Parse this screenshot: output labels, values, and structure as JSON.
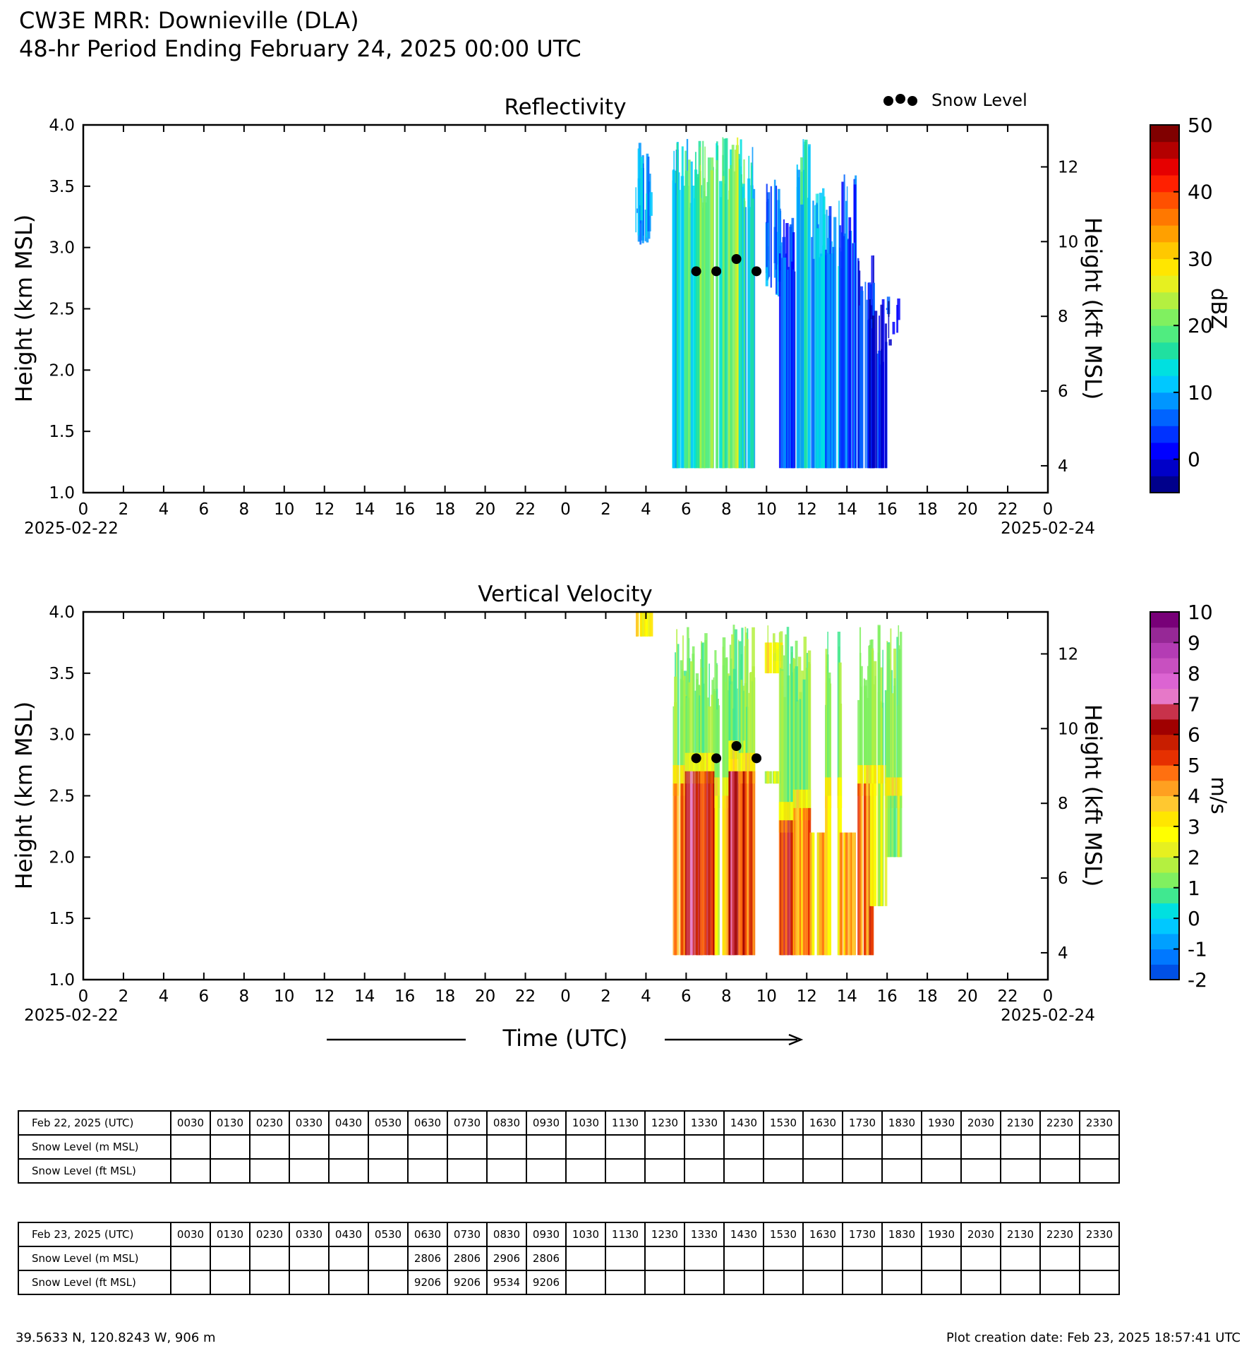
{
  "header": {
    "title_line1": "CW3E MRR: Downieville (DLA)",
    "title_line2": "48-hr Period Ending February 24, 2025 00:00 UTC"
  },
  "legend": {
    "snow_level_label": "Snow Level"
  },
  "colors": {
    "dbz": [
      "#00008b",
      "#0000c8",
      "#0000ff",
      "#0032ff",
      "#0064ff",
      "#0096ff",
      "#00c8ff",
      "#00e0e0",
      "#20e0a0",
      "#50ec80",
      "#80f060",
      "#b4f040",
      "#e6f020",
      "#ffe600",
      "#ffc800",
      "#ffa000",
      "#ff7800",
      "#ff5000",
      "#ff2000",
      "#e60000",
      "#b40000",
      "#800000"
    ],
    "vel": [
      "#0050e6",
      "#0078ff",
      "#00a0ff",
      "#00c8ff",
      "#00e0e0",
      "#40e890",
      "#80f060",
      "#b4f040",
      "#e6f020",
      "#ffff00",
      "#ffe600",
      "#ffc830",
      "#ffa020",
      "#ff7010",
      "#e63000",
      "#c81e00",
      "#a00000",
      "#c8324b",
      "#e678c8",
      "#dc64d2",
      "#c850c0",
      "#b43cb4",
      "#962896",
      "#780078"
    ]
  },
  "chart_data": [
    {
      "type": "heatmap",
      "title": "Reflectivity",
      "ylabel": "Height (km MSL)",
      "ylabel_right": "Height (kft MSL)",
      "ylim": [
        1.0,
        4.0
      ],
      "yticks": [
        "1.0",
        "1.5",
        "2.0",
        "2.5",
        "3.0",
        "3.5",
        "4.0"
      ],
      "yticks_right": [
        "4",
        "6",
        "8",
        "10",
        "12"
      ],
      "xlim": [
        0,
        48
      ],
      "xticks": [
        "0",
        "2",
        "4",
        "6",
        "8",
        "10",
        "12",
        "14",
        "16",
        "18",
        "20",
        "22",
        "0",
        "2",
        "4",
        "6",
        "8",
        "10",
        "12",
        "14",
        "16",
        "18",
        "20",
        "22",
        "0"
      ],
      "xdate_start": "2025-02-22",
      "xdate_end": "2025-02-24",
      "colorbar_label": "dBZ",
      "colorbar_range": [
        -5,
        50
      ],
      "colorbar_ticks": [
        "0",
        "10",
        "20",
        "30",
        "40",
        "50"
      ],
      "data_period_hours": [
        27.7,
        40.4
      ],
      "profiles": [
        {
          "t": 27.8,
          "base": 3.0,
          "top": 3.9,
          "v": 9
        },
        {
          "t": 29.7,
          "base": 1.2,
          "top": 3.9,
          "v": 12
        },
        {
          "t": 30.3,
          "base": 1.2,
          "top": 3.9,
          "v": 17
        },
        {
          "t": 31.0,
          "base": 1.2,
          "top": 3.9,
          "v": 20
        },
        {
          "t": 31.8,
          "base": 1.2,
          "top": 3.9,
          "v": 18
        },
        {
          "t": 32.5,
          "base": 1.2,
          "top": 3.9,
          "v": 22
        },
        {
          "t": 33.0,
          "base": 1.2,
          "top": 3.9,
          "v": 14
        },
        {
          "t": 34.3,
          "base": 2.6,
          "top": 3.6,
          "v": 7
        },
        {
          "t": 35.0,
          "base": 1.2,
          "top": 3.3,
          "v": 4
        },
        {
          "t": 35.7,
          "base": 1.2,
          "top": 3.9,
          "v": 13
        },
        {
          "t": 36.5,
          "base": 1.2,
          "top": 3.5,
          "v": 10
        },
        {
          "t": 37.3,
          "base": 1.2,
          "top": 3.4,
          "v": 8
        },
        {
          "t": 38.0,
          "base": 1.2,
          "top": 3.6,
          "v": 5
        },
        {
          "t": 38.9,
          "base": 1.2,
          "top": 3.0,
          "v": 3
        },
        {
          "t": 39.5,
          "base": 1.2,
          "top": 2.6,
          "v": 1
        },
        {
          "t": 40.3,
          "base": 2.2,
          "top": 2.6,
          "v": 2
        }
      ]
    },
    {
      "type": "heatmap",
      "title": "Vertical Velocity",
      "ylabel": "Height (km MSL)",
      "ylabel_right": "Height (kft MSL)",
      "xlabel": "Time (UTC)",
      "ylim": [
        1.0,
        4.0
      ],
      "yticks": [
        "1.0",
        "1.5",
        "2.0",
        "2.5",
        "3.0",
        "3.5",
        "4.0"
      ],
      "yticks_right": [
        "4",
        "6",
        "8",
        "10",
        "12"
      ],
      "xlim": [
        0,
        48
      ],
      "xticks": [
        "0",
        "2",
        "4",
        "6",
        "8",
        "10",
        "12",
        "14",
        "16",
        "18",
        "20",
        "22",
        "0",
        "2",
        "4",
        "6",
        "8",
        "10",
        "12",
        "14",
        "16",
        "18",
        "20",
        "22",
        "0"
      ],
      "xdate_start": "2025-02-22",
      "xdate_end": "2025-02-24",
      "colorbar_label": "m/s",
      "colorbar_range": [
        -2,
        10
      ],
      "colorbar_ticks": [
        "-2",
        "-1",
        "0",
        "1",
        "2",
        "3",
        "4",
        "5",
        "6",
        "7",
        "8",
        "9",
        "10"
      ],
      "profiles": [
        {
          "t": 27.8,
          "base": 3.0,
          "top": 3.9,
          "v": 1.2
        },
        {
          "t": 29.7,
          "base": 1.2,
          "top": 2.6,
          "v": 4.5
        },
        {
          "t": 30.3,
          "base": 1.2,
          "top": 2.7,
          "v": 6.0
        },
        {
          "t": 31.0,
          "base": 1.2,
          "top": 2.7,
          "v": 5.6
        },
        {
          "t": 31.8,
          "base": 1.2,
          "top": 2.5,
          "v": 3.2
        },
        {
          "t": 32.5,
          "base": 1.2,
          "top": 2.8,
          "v": 6.0
        },
        {
          "t": 33.0,
          "base": 1.2,
          "top": 2.7,
          "v": 5.0
        },
        {
          "t": 34.3,
          "base": 2.6,
          "top": 3.6,
          "v": 1.5
        },
        {
          "t": 35.0,
          "base": 1.2,
          "top": 2.3,
          "v": 5.6
        },
        {
          "t": 35.7,
          "base": 1.2,
          "top": 2.4,
          "v": 4.3
        },
        {
          "t": 36.5,
          "base": 1.2,
          "top": 2.2,
          "v": 3.3
        },
        {
          "t": 37.3,
          "base": 1.2,
          "top": 2.5,
          "v": 3.0
        },
        {
          "t": 38.0,
          "base": 1.2,
          "top": 2.2,
          "v": 4.0
        },
        {
          "t": 38.9,
          "base": 1.2,
          "top": 2.6,
          "v": 4.6
        },
        {
          "t": 39.5,
          "base": 1.6,
          "top": 2.6,
          "v": 2.2
        },
        {
          "t": 40.3,
          "base": 2.0,
          "top": 2.5,
          "v": 1.8
        }
      ],
      "upper_layer_v": 1.3,
      "melting_band_v": 3.0
    }
  ],
  "snow_level_points": [
    {
      "t": 30.5,
      "km": 2.806
    },
    {
      "t": 31.5,
      "km": 2.806
    },
    {
      "t": 32.5,
      "km": 2.906
    },
    {
      "t": 33.5,
      "km": 2.806
    }
  ],
  "tables": [
    {
      "date_label": "Feb 22, 2025 (UTC)",
      "times": [
        "0030",
        "0130",
        "0230",
        "0330",
        "0430",
        "0530",
        "0630",
        "0730",
        "0830",
        "0930",
        "1030",
        "1130",
        "1230",
        "1330",
        "1430",
        "1530",
        "1630",
        "1730",
        "1830",
        "1930",
        "2030",
        "2130",
        "2230",
        "2330"
      ],
      "row_m_label": "Snow Level (m MSL)",
      "row_ft_label": "Snow Level (ft MSL)",
      "m": [
        "",
        "",
        "",
        "",
        "",
        "",
        "",
        "",
        "",
        "",
        "",
        "",
        "",
        "",
        "",
        "",
        "",
        "",
        "",
        "",
        "",
        "",
        "",
        ""
      ],
      "ft": [
        "",
        "",
        "",
        "",
        "",
        "",
        "",
        "",
        "",
        "",
        "",
        "",
        "",
        "",
        "",
        "",
        "",
        "",
        "",
        "",
        "",
        "",
        "",
        ""
      ]
    },
    {
      "date_label": "Feb 23, 2025 (UTC)",
      "times": [
        "0030",
        "0130",
        "0230",
        "0330",
        "0430",
        "0530",
        "0630",
        "0730",
        "0830",
        "0930",
        "1030",
        "1130",
        "1230",
        "1330",
        "1430",
        "1530",
        "1630",
        "1730",
        "1830",
        "1930",
        "2030",
        "2130",
        "2230",
        "2330"
      ],
      "row_m_label": "Snow Level (m MSL)",
      "row_ft_label": "Snow Level (ft MSL)",
      "m": [
        "",
        "",
        "",
        "",
        "",
        "",
        "2806",
        "2806",
        "2906",
        "2806",
        "",
        "",
        "",
        "",
        "",
        "",
        "",
        "",
        "",
        "",
        "",
        "",
        "",
        ""
      ],
      "ft": [
        "",
        "",
        "",
        "",
        "",
        "",
        "9206",
        "9206",
        "9534",
        "9206",
        "",
        "",
        "",
        "",
        "",
        "",
        "",
        "",
        "",
        "",
        "",
        "",
        "",
        ""
      ]
    }
  ],
  "footer": {
    "coords": "39.5633 N, 120.8243 W, 906 m",
    "created": "Plot creation date: Feb 23, 2025 18:57:41 UTC"
  }
}
